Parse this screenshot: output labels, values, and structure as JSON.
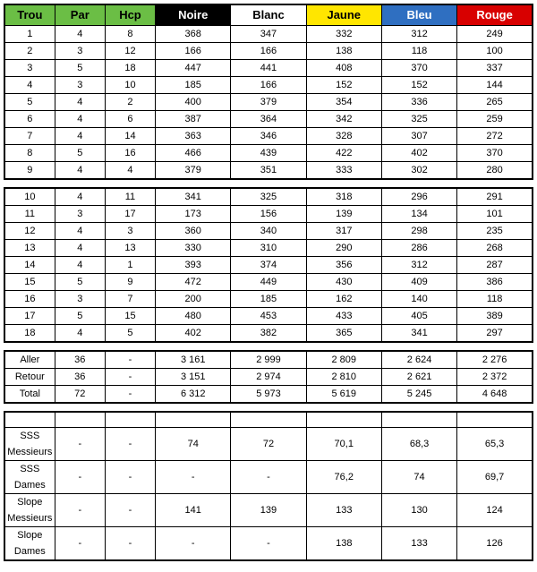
{
  "header": {
    "th": [
      "Trou",
      "Par",
      "Hcp",
      "Noire",
      "Blanc",
      "Jaune",
      "Bleu",
      "Rouge"
    ],
    "classes": [
      "hdr-green",
      "hdr-green",
      "hdr-green",
      "hdr-black",
      "hdr-white",
      "hdr-yellow",
      "hdr-blue",
      "hdr-red"
    ]
  },
  "front": [
    [
      "1",
      "4",
      "8",
      "368",
      "347",
      "332",
      "312",
      "249"
    ],
    [
      "2",
      "3",
      "12",
      "166",
      "166",
      "138",
      "118",
      "100"
    ],
    [
      "3",
      "5",
      "18",
      "447",
      "441",
      "408",
      "370",
      "337"
    ],
    [
      "4",
      "3",
      "10",
      "185",
      "166",
      "152",
      "152",
      "144"
    ],
    [
      "5",
      "4",
      "2",
      "400",
      "379",
      "354",
      "336",
      "265"
    ],
    [
      "6",
      "4",
      "6",
      "387",
      "364",
      "342",
      "325",
      "259"
    ],
    [
      "7",
      "4",
      "14",
      "363",
      "346",
      "328",
      "307",
      "272"
    ],
    [
      "8",
      "5",
      "16",
      "466",
      "439",
      "422",
      "402",
      "370"
    ],
    [
      "9",
      "4",
      "4",
      "379",
      "351",
      "333",
      "302",
      "280"
    ]
  ],
  "back": [
    [
      "10",
      "4",
      "11",
      "341",
      "325",
      "318",
      "296",
      "291"
    ],
    [
      "11",
      "3",
      "17",
      "173",
      "156",
      "139",
      "134",
      "101"
    ],
    [
      "12",
      "4",
      "3",
      "360",
      "340",
      "317",
      "298",
      "235"
    ],
    [
      "13",
      "4",
      "13",
      "330",
      "310",
      "290",
      "286",
      "268"
    ],
    [
      "14",
      "4",
      "1",
      "393",
      "374",
      "356",
      "312",
      "287"
    ],
    [
      "15",
      "5",
      "9",
      "472",
      "449",
      "430",
      "409",
      "386"
    ],
    [
      "16",
      "3",
      "7",
      "200",
      "185",
      "162",
      "140",
      "118"
    ],
    [
      "17",
      "5",
      "15",
      "480",
      "453",
      "433",
      "405",
      "389"
    ],
    [
      "18",
      "4",
      "5",
      "402",
      "382",
      "365",
      "341",
      "297"
    ]
  ],
  "totals": [
    [
      "Aller",
      "36",
      "-",
      "3 161",
      "2 999",
      "2 809",
      "2 624",
      "2 276"
    ],
    [
      "Retour",
      "36",
      "-",
      "3 151",
      "2 974",
      "2 810",
      "2 621",
      "2 372"
    ],
    [
      "Total",
      "72",
      "-",
      "6 312",
      "5 973",
      "5 619",
      "5 245",
      "4 648"
    ]
  ],
  "ratings": [
    {
      "l1": "SSS",
      "l2": "Messieurs",
      "par": "-",
      "hcp": "-",
      "v": [
        "74",
        "72",
        "70,1",
        "68,3",
        "65,3"
      ]
    },
    {
      "l1": "SSS",
      "l2": "Dames",
      "par": "-",
      "hcp": "-",
      "v": [
        "-",
        "-",
        "76,2",
        "74",
        "69,7"
      ]
    },
    {
      "l1": "Slope",
      "l2": "Messieurs",
      "par": "-",
      "hcp": "-",
      "v": [
        "141",
        "139",
        "133",
        "130",
        "124"
      ]
    },
    {
      "l1": "Slope",
      "l2": "Dames",
      "par": "-",
      "hcp": "-",
      "v": [
        "-",
        "-",
        "138",
        "133",
        "126"
      ]
    }
  ]
}
